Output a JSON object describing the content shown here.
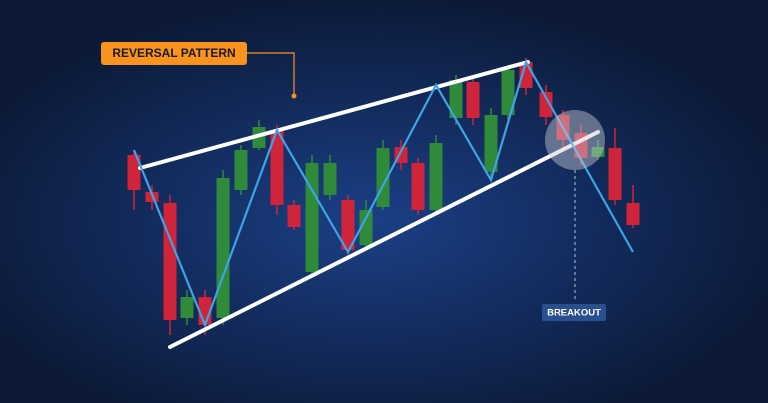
{
  "callout": {
    "label": "REVERSAL PATTERN"
  },
  "breakout": {
    "label": "BREAKOUT"
  }
}
